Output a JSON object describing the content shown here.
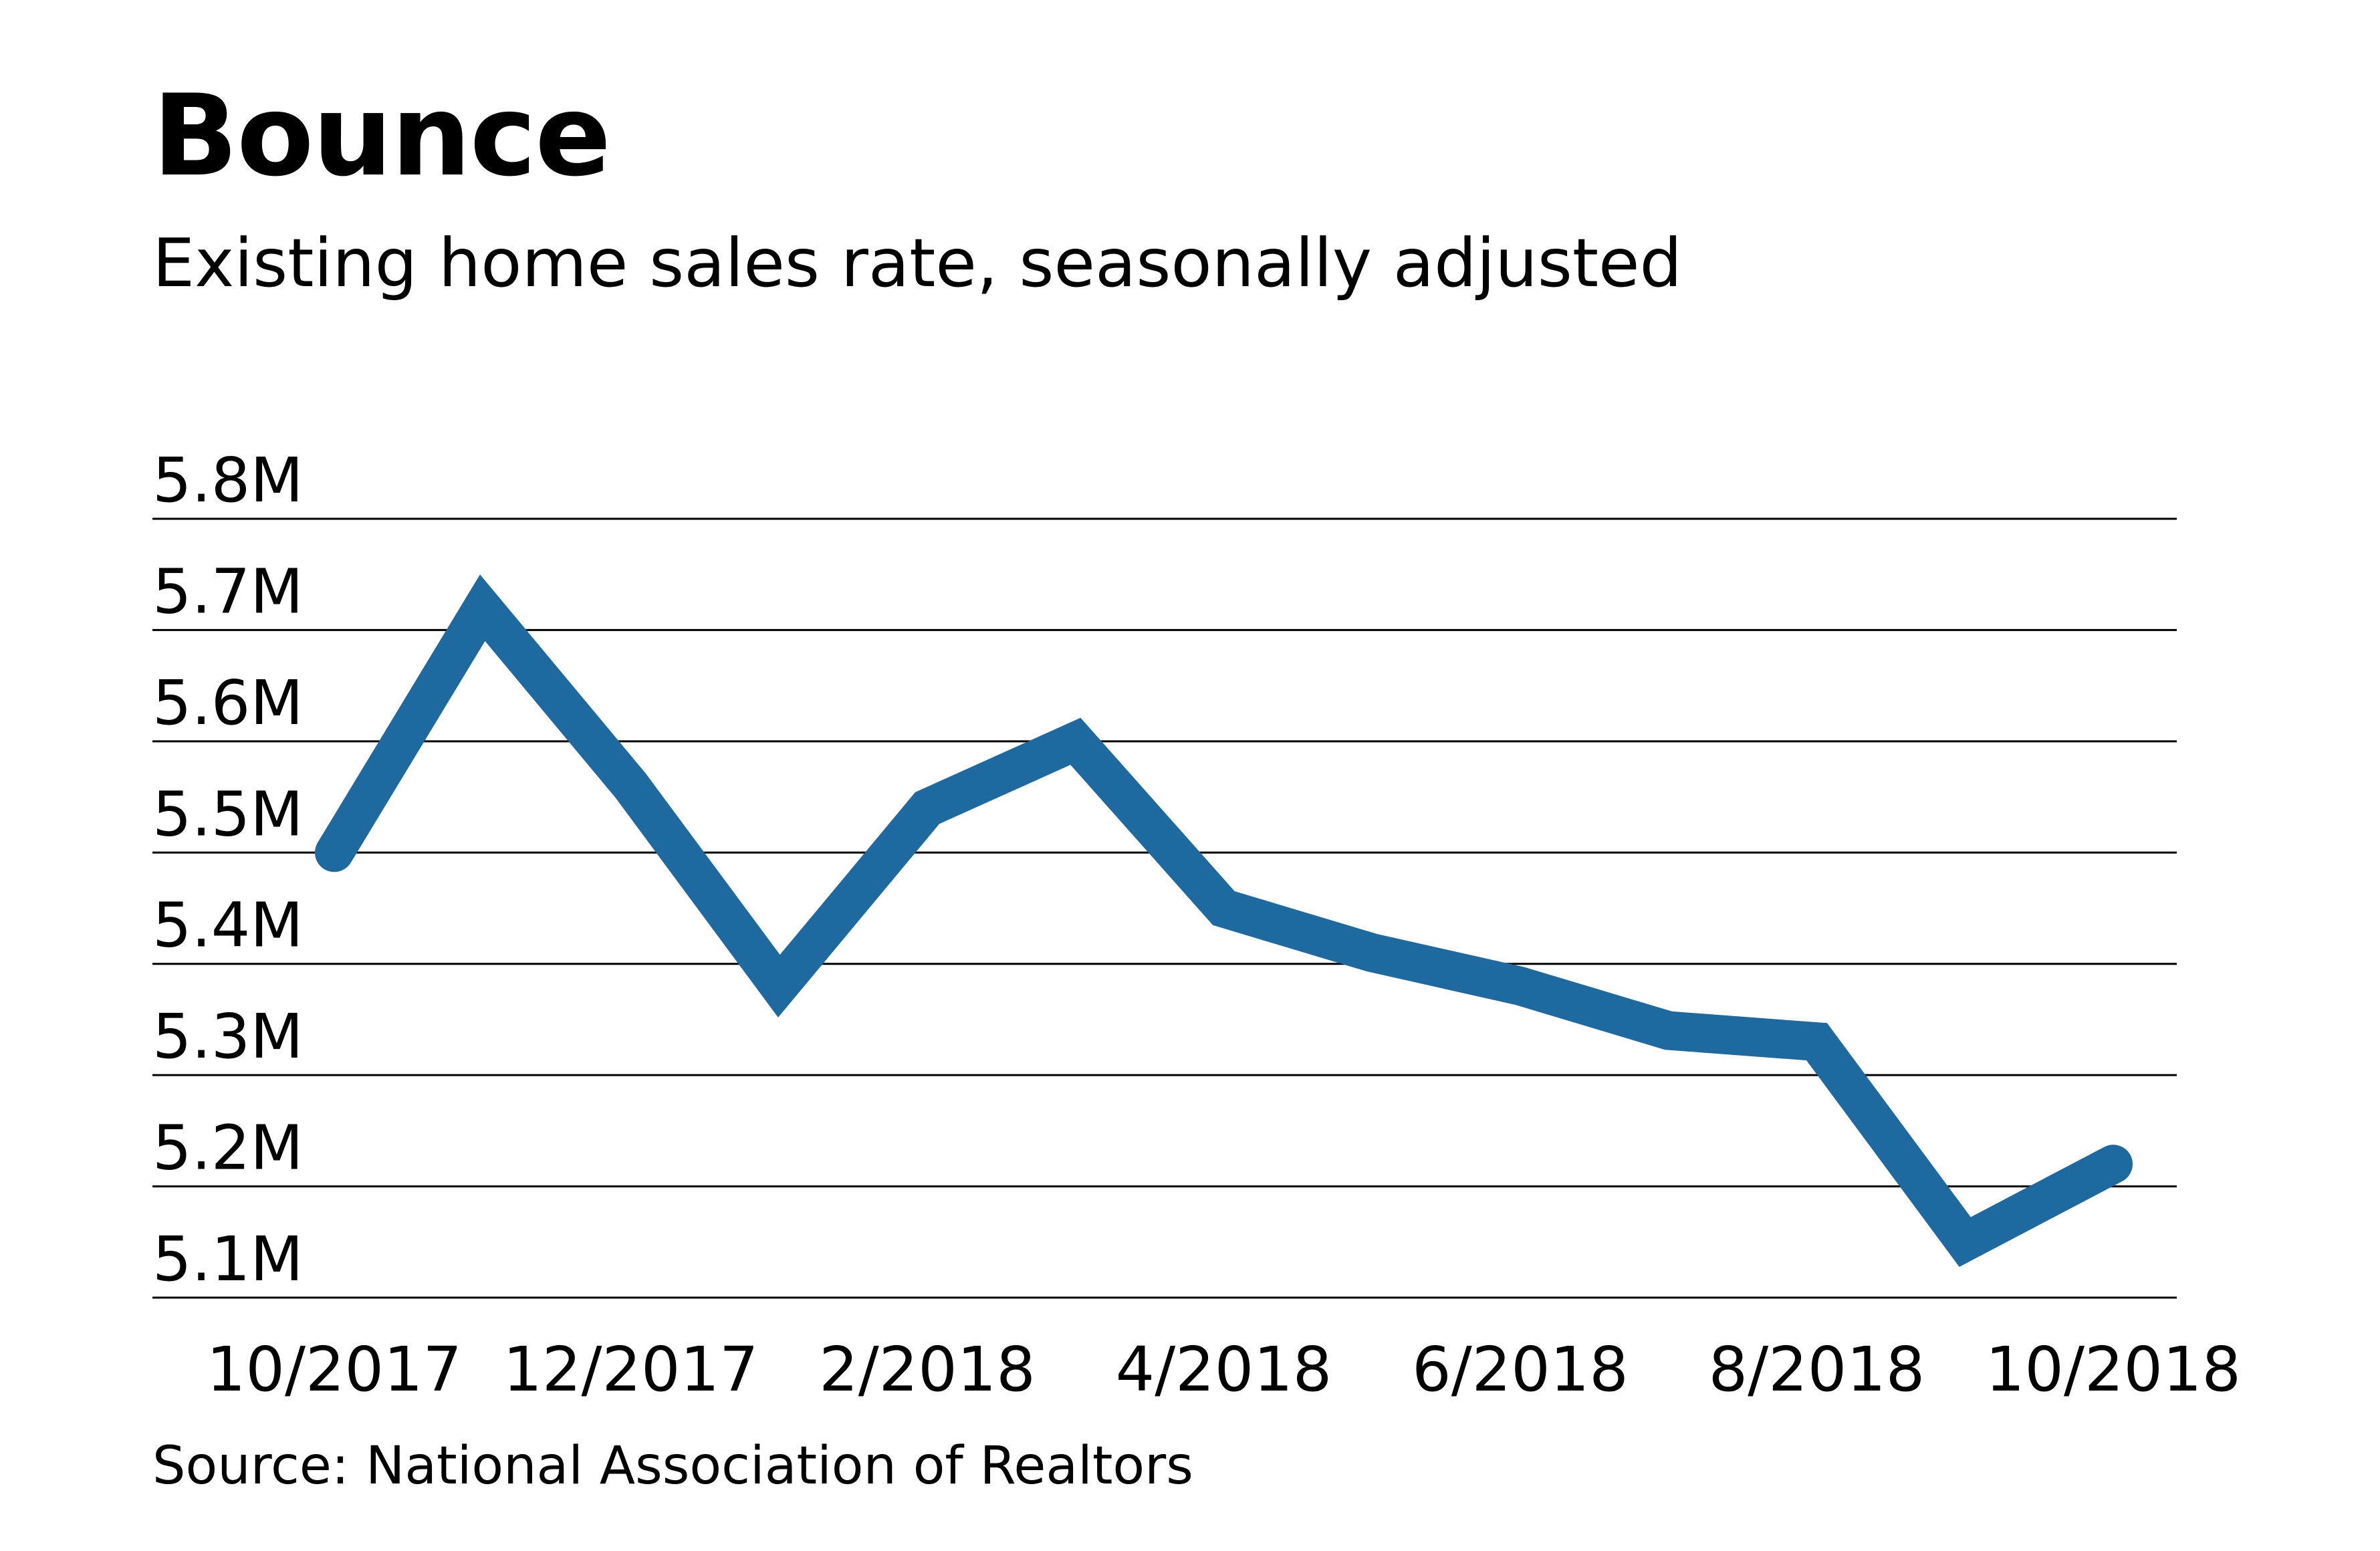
{
  "title": "Bounce",
  "subtitle": "Existing home sales rate, seasonally adjusted",
  "source": "Source: National Association of Realtors",
  "chart_data": {
    "type": "line",
    "title": "Bounce",
    "subtitle": "Existing home sales rate, seasonally adjusted",
    "xlabel": "",
    "ylabel": "",
    "x": [
      "10/2017",
      "11/2017",
      "12/2017",
      "1/2018",
      "2/2018",
      "3/2018",
      "4/2018",
      "5/2018",
      "6/2018",
      "7/2018",
      "8/2018",
      "9/2018",
      "10/2018"
    ],
    "values": [
      5.5,
      5.72,
      5.56,
      5.38,
      5.54,
      5.6,
      5.45,
      5.41,
      5.38,
      5.34,
      5.33,
      5.15,
      5.22
    ],
    "unit": "M",
    "x_tick_labels": [
      "10/2017",
      "12/2017",
      "2/2018",
      "4/2018",
      "6/2018",
      "8/2018",
      "10/2018"
    ],
    "y_ticks": [
      5.8,
      5.7,
      5.6,
      5.5,
      5.4,
      5.3,
      5.2,
      5.1
    ],
    "y_tick_labels": [
      "5.8M",
      "5.7M",
      "5.6M",
      "5.5M",
      "5.4M",
      "5.3M",
      "5.2M",
      "5.1M"
    ],
    "ylim": [
      5.1,
      5.8
    ],
    "grid": "horizontal",
    "legend": "none",
    "line_color": "#1d69a0"
  }
}
